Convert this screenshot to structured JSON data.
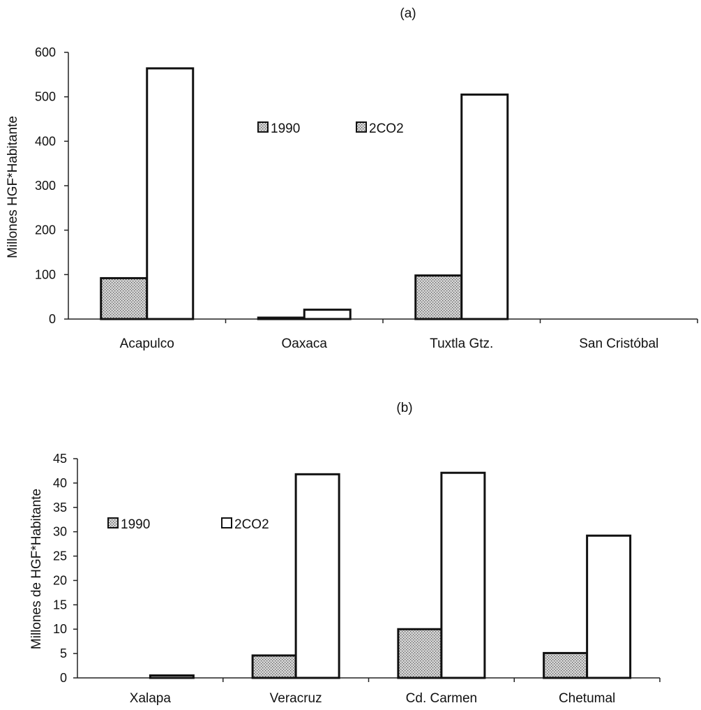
{
  "chart_data": [
    {
      "type": "bar",
      "title": "(a)",
      "ylabel": "Millones HGF*Habitante",
      "xlabel": "",
      "ylim": [
        0,
        600
      ],
      "yticks": [
        0,
        100,
        200,
        300,
        400,
        500,
        600
      ],
      "grid": false,
      "legend_position": "center",
      "categories": [
        "Acapulco",
        "Oaxaca",
        "Tuxtla Gtz.",
        "San Cristóbal"
      ],
      "series": [
        {
          "name": "1990",
          "fill": "dotted-gray",
          "values": [
            92,
            1,
            98,
            0
          ]
        },
        {
          "name": "2CO2",
          "fill": "#ffffff",
          "values": [
            564,
            21,
            505,
            0
          ]
        }
      ]
    },
    {
      "type": "bar",
      "title": "(b)",
      "ylabel": "Millones de HGF*Habitante",
      "xlabel": "",
      "ylim": [
        0,
        45
      ],
      "yticks": [
        0,
        5,
        10,
        15,
        20,
        25,
        30,
        35,
        40,
        45
      ],
      "grid": false,
      "legend_position": "top-left",
      "categories": [
        "Xalapa",
        "Veracruz",
        "Cd. Carmen",
        "Chetumal"
      ],
      "series": [
        {
          "name": "1990",
          "fill": "dotted-gray",
          "values": [
            0,
            4.6,
            10,
            5.1
          ]
        },
        {
          "name": "2CO2",
          "fill": "#ffffff",
          "values": [
            0.5,
            41.8,
            42.1,
            29.2
          ]
        }
      ]
    }
  ]
}
